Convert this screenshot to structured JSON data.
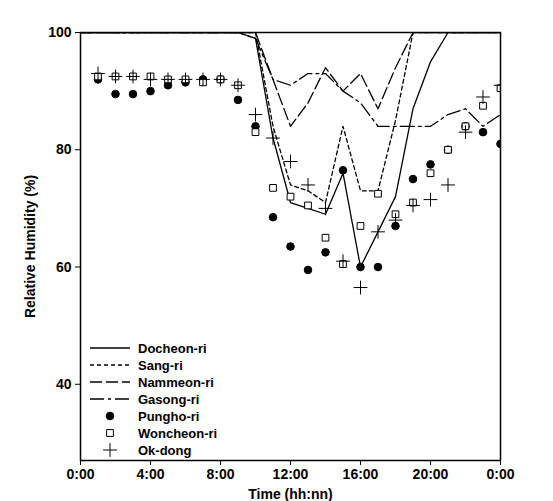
{
  "chart_data": {
    "type": "line",
    "x_label": "Time (hh:nn)",
    "y_label": "Relative Humidity (%)",
    "x": [
      0,
      1,
      2,
      3,
      4,
      5,
      6,
      7,
      8,
      9,
      10,
      11,
      12,
      13,
      14,
      15,
      16,
      17,
      18,
      19,
      20,
      21,
      22,
      23,
      24
    ],
    "xlim": [
      0,
      24
    ],
    "xticks": [
      {
        "value": 0,
        "label": "0:00"
      },
      {
        "value": 4,
        "label": "4:00"
      },
      {
        "value": 8,
        "label": "8:00"
      },
      {
        "value": 12,
        "label": "12:00"
      },
      {
        "value": 16,
        "label": "16:00"
      },
      {
        "value": 20,
        "label": "20:00"
      },
      {
        "value": 24,
        "label": "0:00"
      }
    ],
    "ylim": [
      27,
      100
    ],
    "yticks": [
      40,
      60,
      80,
      100
    ],
    "grid": false,
    "legend": "bottom-left",
    "series": [
      {
        "name": "Docheon-ri",
        "type": "line",
        "line_style": "solid",
        "color": "#000000",
        "values": [
          100,
          100,
          100,
          100,
          100,
          100,
          100,
          100,
          100,
          100,
          99,
          82,
          71,
          70,
          69,
          76,
          60,
          66,
          72,
          87,
          95,
          100,
          100,
          100,
          100
        ]
      },
      {
        "name": "Sang-ri",
        "type": "line",
        "line_style": "dashed",
        "color": "#000000",
        "values": [
          100,
          100,
          100,
          100,
          100,
          100,
          100,
          100,
          100,
          100,
          100,
          84,
          74,
          73,
          71,
          84,
          73,
          73,
          85,
          100,
          100,
          100,
          100,
          100,
          100
        ]
      },
      {
        "name": "Nammeon-ri",
        "type": "line",
        "line_style": "longdash",
        "color": "#000000",
        "values": [
          100,
          100,
          100,
          100,
          100,
          100,
          100,
          100,
          100,
          100,
          100,
          92,
          84,
          88,
          94,
          90,
          93,
          87,
          94,
          100,
          100,
          100,
          100,
          100,
          100
        ]
      },
      {
        "name": "Gasong-ri",
        "type": "line",
        "line_style": "dashdot",
        "color": "#000000",
        "values": [
          100,
          100,
          100,
          100,
          100,
          100,
          100,
          100,
          100,
          100,
          99,
          92,
          91,
          93,
          93,
          90,
          88,
          84,
          84,
          84,
          84,
          86,
          87,
          84,
          86
        ]
      },
      {
        "name": "Pungho-ri",
        "type": "scatter",
        "marker": "circle",
        "color": "#000000",
        "values": [
          null,
          92,
          89.5,
          89.5,
          90,
          91,
          91.5,
          92,
          92,
          88.5,
          84,
          68.5,
          63.5,
          59.5,
          62.5,
          76.5,
          60,
          60,
          67,
          75,
          77.5,
          80,
          84,
          83,
          81
        ]
      },
      {
        "name": "Woncheon-ri",
        "type": "scatter",
        "marker": "square",
        "color": "#000000",
        "values": [
          null,
          92.5,
          92.5,
          92.5,
          92.5,
          92,
          92,
          91.5,
          92,
          91,
          83,
          73.5,
          72,
          70.5,
          65,
          60.5,
          67,
          72.5,
          69,
          71,
          76,
          80,
          84,
          87.5,
          90.5
        ]
      },
      {
        "name": "Ok-dong",
        "type": "scatter",
        "marker": "plus",
        "color": "#000000",
        "values": [
          null,
          93,
          92.5,
          92.5,
          92,
          92,
          92,
          92,
          92,
          91,
          86,
          82,
          78,
          74,
          70,
          61,
          56.5,
          66,
          68,
          70.5,
          71.5,
          74,
          83,
          89,
          91
        ]
      }
    ]
  }
}
